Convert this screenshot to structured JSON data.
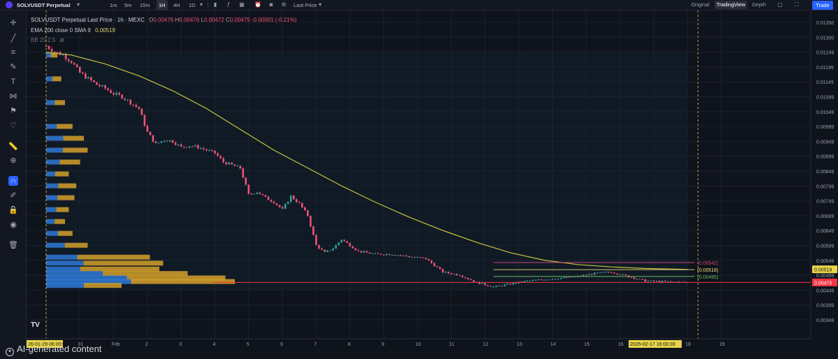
{
  "toolbar": {
    "symbol": "SOLVUSDT Perpetual",
    "intervals": [
      "1m",
      "5m",
      "15m",
      "1H",
      "4H",
      "1D"
    ],
    "active_interval": "1H",
    "price_type": "Last Price",
    "view_tabs": [
      "Original",
      "TradingView",
      "Depth"
    ],
    "active_view": "TradingView",
    "trade_label": "Trade"
  },
  "legend": {
    "title": "SOLVUSDT Perpetual Last Price · 1h · MEXC",
    "ohlc": [
      {
        "k": "O",
        "v": "0.00476"
      },
      {
        "k": "H",
        "v": "0.00476"
      },
      {
        "k": "L",
        "v": "0.00472"
      },
      {
        "k": "C",
        "v": "0.00475"
      }
    ],
    "change": "-0.00001 (-0.21%)",
    "ema_label": "EMA 200 close 0 SMA 9",
    "ema_value": "0.00519",
    "bb_label": "BB 20 2.5"
  },
  "footer": {
    "ai_note": "AI-generated content"
  },
  "colors": {
    "up": "#26a69a",
    "down": "#ef5376",
    "ema": "#c8c43e",
    "current_price": "#f23645",
    "volume_profile_buy": "#2e79d6",
    "volume_profile_sell": "#d4a02a",
    "accent": "#2962ff"
  },
  "chart_data": {
    "type": "line",
    "title": "",
    "xlabel": "",
    "ylabel": "",
    "x_ticks": [
      "26-01-29 06:00:00",
      "31",
      "Feb",
      "2",
      "3",
      "4",
      "5",
      "6",
      "7",
      "8",
      "9",
      "10",
      "11",
      "12",
      "13",
      "14",
      "15",
      "16",
      "2026-02-17  16:00:00",
      "18",
      "19"
    ],
    "y_ticks": [
      "0.01350",
      "0.01300",
      "0.01249",
      "0.01199",
      "0.01149",
      "0.01099",
      "0.01049",
      "0.00999",
      "0.00949",
      "0.00899",
      "0.00849",
      "0.00799",
      "0.00749",
      "0.00699",
      "0.00649",
      "0.00599",
      "0.00549",
      "0.00499",
      "0.00449",
      "0.00399",
      "0.00349"
    ],
    "ylim": [
      0.00349,
      0.0135
    ],
    "grid": true,
    "series": [
      {
        "kind": "price",
        "points": [
          [
            "29 Jan 06:00",
            0.0127
          ],
          [
            "29 Jan 12:00",
            0.01252
          ],
          [
            "29 Jan 18:00",
            0.0124
          ],
          [
            "30 Jan 00:00",
            0.01218
          ],
          [
            "30 Jan 06:00",
            0.0118
          ],
          [
            "30 Jan 12:00",
            0.0116
          ],
          [
            "30 Jan 18:00",
            0.0114
          ],
          [
            "31 Jan 00:00",
            0.01128
          ],
          [
            "31 Jan 06:00",
            0.0111
          ],
          [
            "31 Jan 12:00",
            0.011
          ],
          [
            "31 Jan 18:00",
            0.0108
          ],
          [
            "1 Feb 00:00",
            0.0106
          ],
          [
            "1 Feb 06:00",
            0.0098
          ],
          [
            "1 Feb 12:00",
            0.0094
          ],
          [
            "1 Feb 18:00",
            0.00955
          ],
          [
            "2 Feb 00:00",
            0.0095
          ],
          [
            "2 Feb 06:00",
            0.0093
          ],
          [
            "2 Feb 12:00",
            0.00935
          ],
          [
            "2 Feb 18:00",
            0.0093
          ],
          [
            "3 Feb 00:00",
            0.0092
          ],
          [
            "3 Feb 06:00",
            0.0091
          ],
          [
            "3 Feb 12:00",
            0.0088
          ],
          [
            "3 Feb 18:00",
            0.0087
          ],
          [
            "4 Feb 00:00",
            0.0086
          ],
          [
            "4 Feb 06:00",
            0.0077
          ],
          [
            "4 Feb 12:00",
            0.0078
          ],
          [
            "4 Feb 18:00",
            0.0076
          ],
          [
            "5 Feb 00:00",
            0.00745
          ],
          [
            "5 Feb 06:00",
            0.0072
          ],
          [
            "5 Feb 12:00",
            0.00765
          ],
          [
            "5 Feb 18:00",
            0.0074
          ],
          [
            "6 Feb 00:00",
            0.007
          ],
          [
            "6 Feb 06:00",
            0.006
          ],
          [
            "6 Feb 12:00",
            0.00575
          ],
          [
            "6 Feb 18:00",
            0.0059
          ],
          [
            "7 Feb 00:00",
            0.0062
          ],
          [
            "7 Feb 06:00",
            0.006
          ],
          [
            "7 Feb 12:00",
            0.0058
          ],
          [
            "7 Feb 18:00",
            0.00575
          ],
          [
            "8 Feb 00:00",
            0.0057
          ],
          [
            "8 Feb 12:00",
            0.0057
          ],
          [
            "9 Feb 00:00",
            0.00562
          ],
          [
            "9 Feb 12:00",
            0.00555
          ],
          [
            "10 Feb 00:00",
            0.0051
          ],
          [
            "10 Feb 12:00",
            0.005
          ],
          [
            "11 Feb 00:00",
            0.00475
          ],
          [
            "11 Feb 12:00",
            0.0046
          ],
          [
            "12 Feb 00:00",
            0.0047
          ],
          [
            "12 Feb 12:00",
            0.0048
          ],
          [
            "13 Feb 00:00",
            0.00485
          ],
          [
            "13 Feb 12:00",
            0.0049
          ],
          [
            "14 Feb 00:00",
            0.00495
          ],
          [
            "14 Feb 12:00",
            0.00505
          ],
          [
            "15 Feb 00:00",
            0.0051
          ],
          [
            "15 Feb 12:00",
            0.00495
          ],
          [
            "16 Feb 00:00",
            0.0048
          ],
          [
            "16 Feb 12:00",
            0.00478
          ],
          [
            "17 Feb 00:00",
            0.00476
          ],
          [
            "17 Feb 06:00",
            0.00475
          ]
        ]
      },
      {
        "kind": "ema",
        "label": "EMA 200",
        "points": [
          [
            "29 Jan 06:00",
            0.0125
          ],
          [
            "30 Jan 00:00",
            0.0124
          ],
          [
            "31 Jan 00:00",
            0.0121
          ],
          [
            "1 Feb 00:00",
            0.0117
          ],
          [
            "2 Feb 00:00",
            0.0112
          ],
          [
            "3 Feb 00:00",
            0.0106
          ],
          [
            "4 Feb 00:00",
            0.0099
          ],
          [
            "5 Feb 00:00",
            0.0092
          ],
          [
            "6 Feb 00:00",
            0.0086
          ],
          [
            "7 Feb 00:00",
            0.008
          ],
          [
            "8 Feb 00:00",
            0.00745
          ],
          [
            "9 Feb 00:00",
            0.00695
          ],
          [
            "10 Feb 00:00",
            0.0065
          ],
          [
            "11 Feb 00:00",
            0.0061
          ],
          [
            "12 Feb 00:00",
            0.00575
          ],
          [
            "13 Feb 00:00",
            0.0055
          ],
          [
            "14 Feb 00:00",
            0.00535
          ],
          [
            "15 Feb 00:00",
            0.00527
          ],
          [
            "16 Feb 00:00",
            0.00522
          ],
          [
            "17 Feb 06:00",
            0.00519
          ]
        ]
      }
    ],
    "price_labels": [
      {
        "text": "0.00519",
        "value": 0.00519,
        "kind": "ema"
      },
      {
        "text": "0.00475",
        "value": 0.00475,
        "kind": "current"
      }
    ],
    "annotations": [
      {
        "text": "(0.00542)",
        "value": 0.00542
      },
      {
        "text": "(0.00518)",
        "value": 0.00518
      },
      {
        "text": "(0.00495)",
        "value": 0.00495
      }
    ],
    "volume_profile": {
      "price_levels": [
        0.0124,
        0.0116,
        0.0108,
        0.01,
        0.0096,
        0.0092,
        0.0088,
        0.0084,
        0.008,
        0.0076,
        0.0072,
        0.0068,
        0.0064,
        0.006,
        0.0056,
        0.0054,
        0.0052,
        0.00505,
        0.0049,
        0.00478,
        0.00465
      ],
      "volume": [
        0.06,
        0.08,
        0.1,
        0.14,
        0.2,
        0.22,
        0.18,
        0.12,
        0.16,
        0.15,
        0.12,
        0.1,
        0.14,
        0.22,
        0.55,
        0.62,
        0.6,
        0.75,
        0.95,
        1.0,
        0.4
      ],
      "buy_share": [
        0.4,
        0.4,
        0.45,
        0.4,
        0.45,
        0.4,
        0.4,
        0.4,
        0.4,
        0.4,
        0.45,
        0.45,
        0.45,
        0.45,
        0.3,
        0.32,
        0.3,
        0.4,
        0.45,
        0.45,
        0.5
      ]
    }
  }
}
